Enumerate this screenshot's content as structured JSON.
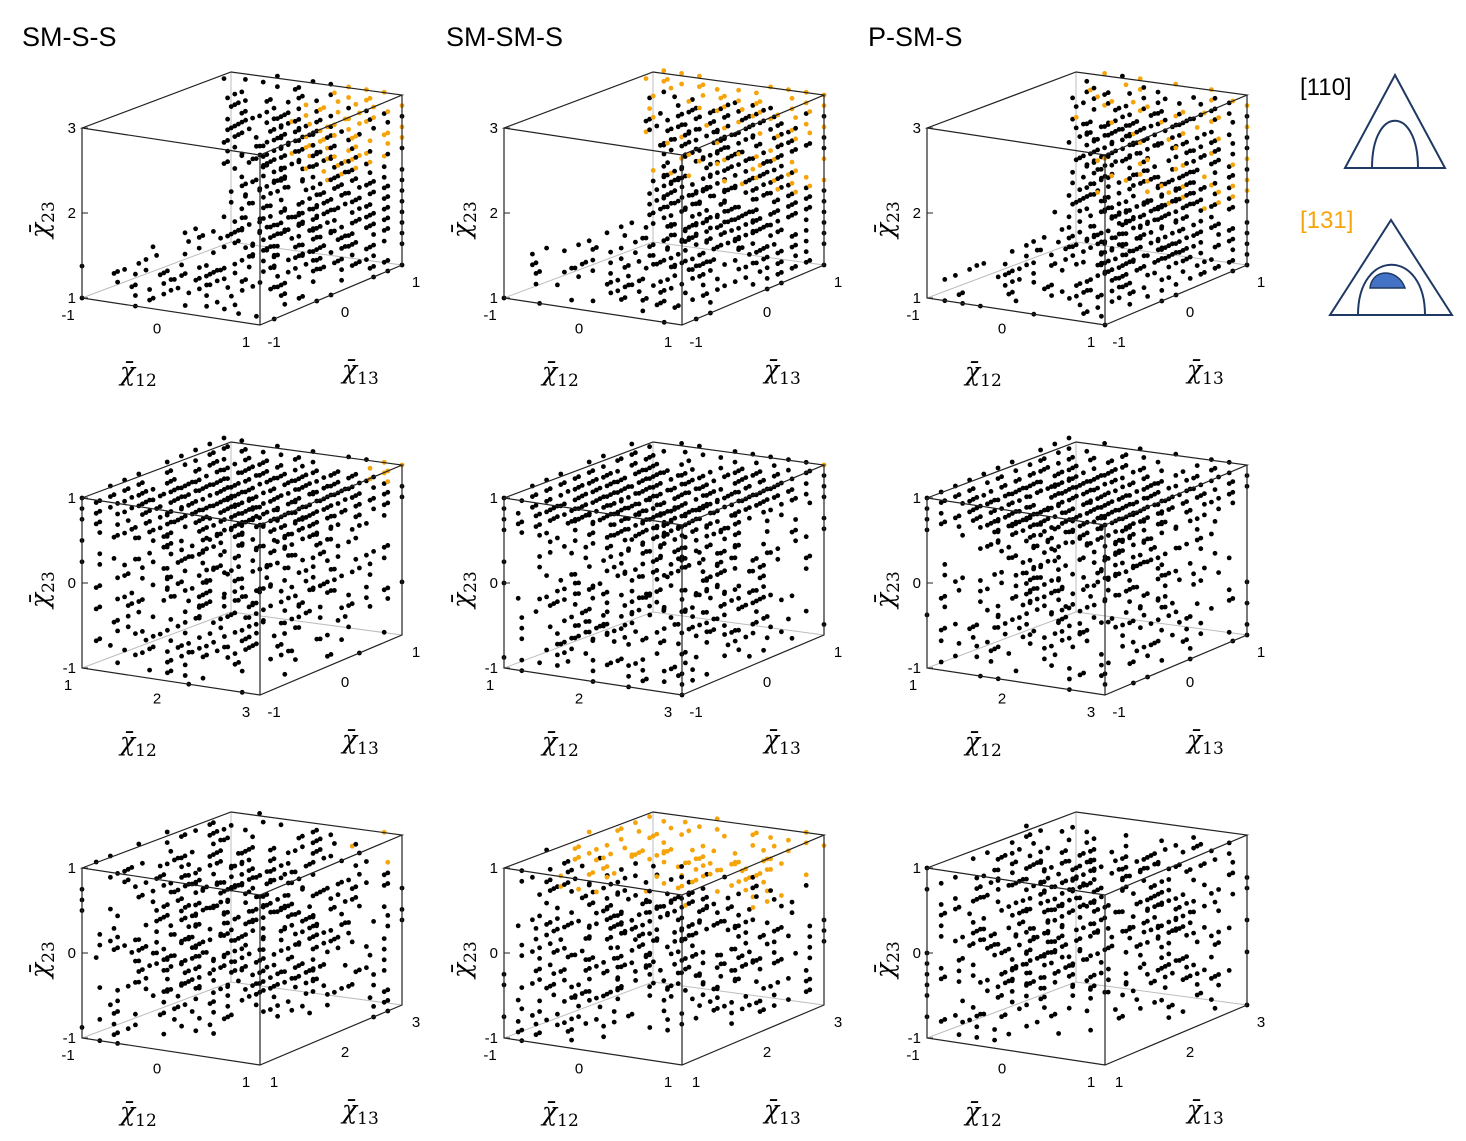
{
  "figure": {
    "column_titles": [
      "SM-S-S",
      "SM-SM-S",
      "P-SM-S"
    ],
    "colors": {
      "base": "#000000",
      "highlight": "#F5A40A",
      "tri_stroke": "#1F3864",
      "tri_fill": "#4472C4"
    },
    "legend": [
      {
        "label": "[110]",
        "color": "#000000",
        "icon": "triangle-with-dome-icon"
      },
      {
        "label": "[131]",
        "color": "#F5A40A",
        "icon": "triangle-with-filled-dome-icon"
      }
    ]
  },
  "chart_data": [
    {
      "type": "scatter",
      "panel": "row1-col1",
      "title": "SM-S-S",
      "xlabel": "χ̄12",
      "ylabel": "χ̄13",
      "zlabel": "χ̄23",
      "xlim": [
        -1,
        1
      ],
      "ylim": [
        -1,
        1
      ],
      "zlim": [
        1,
        3
      ],
      "x_ticks": [
        "-1",
        "0",
        "1"
      ],
      "y_ticks": [
        "-1",
        "0",
        "1"
      ],
      "z_ticks": [
        "1",
        "2",
        "3"
      ],
      "series": [
        {
          "name": "[110]",
          "color": "#000000"
        },
        {
          "name": "[131]",
          "color": "#F5A40A",
          "region": "x≥0.3, y≥0.3"
        }
      ]
    },
    {
      "type": "scatter",
      "panel": "row1-col2",
      "title": "SM-SM-S",
      "xlabel": "χ̄12",
      "ylabel": "χ̄13",
      "zlabel": "χ̄23",
      "xlim": [
        -1,
        1
      ],
      "ylim": [
        -1,
        1
      ],
      "zlim": [
        1,
        3
      ],
      "x_ticks": [
        "-1",
        "0",
        "1"
      ],
      "y_ticks": [
        "-1",
        "0",
        "1"
      ],
      "z_ticks": [
        "1",
        "2",
        "3"
      ],
      "series": [
        {
          "name": "[110]",
          "color": "#000000"
        },
        {
          "name": "[131]",
          "color": "#F5A40A",
          "region": "y≥0.3, χ̄23≥2"
        }
      ]
    },
    {
      "type": "scatter",
      "panel": "row1-col3",
      "title": "P-SM-S",
      "xlabel": "χ̄12",
      "ylabel": "χ̄13",
      "zlabel": "χ̄23",
      "xlim": [
        -1,
        1
      ],
      "ylim": [
        -1,
        1
      ],
      "zlim": [
        1,
        3
      ],
      "x_ticks": [
        "-1",
        "0",
        "1"
      ],
      "y_ticks": [
        "-1",
        "0",
        "1"
      ],
      "z_ticks": [
        "1",
        "2",
        "3"
      ],
      "series": [
        {
          "name": "[110]",
          "color": "#000000"
        },
        {
          "name": "[131]",
          "color": "#F5A40A",
          "region": "y≥0.2, χ̄23≥1.6"
        }
      ]
    },
    {
      "type": "scatter",
      "panel": "row2-col1",
      "xlabel": "χ̄12",
      "ylabel": "χ̄13",
      "zlabel": "χ̄23",
      "xlim": [
        1,
        3
      ],
      "ylim": [
        -1,
        1
      ],
      "zlim": [
        -1,
        1
      ],
      "x_ticks": [
        "1",
        "2",
        "3"
      ],
      "y_ticks": [
        "-1",
        "0",
        "1"
      ],
      "z_ticks": [
        "-1",
        "0",
        "1"
      ],
      "series": [
        {
          "name": "[110]",
          "color": "#000000"
        },
        {
          "name": "[131]",
          "color": "#F5A40A",
          "region": "top corner, y≈1"
        }
      ]
    },
    {
      "type": "scatter",
      "panel": "row2-col2",
      "xlabel": "χ̄12",
      "ylabel": "χ̄13",
      "zlabel": "χ̄23",
      "xlim": [
        1,
        3
      ],
      "ylim": [
        -1,
        1
      ],
      "zlim": [
        -1,
        1
      ],
      "x_ticks": [
        "1",
        "2",
        "3"
      ],
      "y_ticks": [
        "-1",
        "0",
        "1"
      ],
      "z_ticks": [
        "-1",
        "0",
        "1"
      ],
      "series": [
        {
          "name": "[110]",
          "color": "#000000"
        },
        {
          "name": "[131]",
          "color": "#F5A40A",
          "region": "single corner point"
        }
      ]
    },
    {
      "type": "scatter",
      "panel": "row2-col3",
      "xlabel": "χ̄12",
      "ylabel": "χ̄13",
      "zlabel": "χ̄23",
      "xlim": [
        1,
        3
      ],
      "ylim": [
        -1,
        1
      ],
      "zlim": [
        -1,
        1
      ],
      "x_ticks": [
        "1",
        "2",
        "3"
      ],
      "y_ticks": [
        "-1",
        "0",
        "1"
      ],
      "z_ticks": [
        "-1",
        "0",
        "1"
      ],
      "series": [
        {
          "name": "[110]",
          "color": "#000000"
        }
      ]
    },
    {
      "type": "scatter",
      "panel": "row3-col1",
      "xlabel": "χ̄12",
      "ylabel": "χ̄13",
      "zlabel": "χ̄23",
      "xlim": [
        -1,
        1
      ],
      "ylim": [
        1,
        3
      ],
      "zlim": [
        -1,
        1
      ],
      "x_ticks": [
        "-1",
        "0",
        "1"
      ],
      "y_ticks": [
        "1",
        "2",
        "3"
      ],
      "z_ticks": [
        "-1",
        "0",
        "1"
      ],
      "series": [
        {
          "name": "[110]",
          "color": "#000000"
        },
        {
          "name": "[131]",
          "color": "#F5A40A",
          "region": "y≥2.6, χ̄23≈1"
        }
      ]
    },
    {
      "type": "scatter",
      "panel": "row3-col2",
      "xlabel": "χ̄12",
      "ylabel": "χ̄13",
      "zlabel": "χ̄23",
      "xlim": [
        -1,
        1
      ],
      "ylim": [
        1,
        3
      ],
      "zlim": [
        -1,
        1
      ],
      "x_ticks": [
        "-1",
        "0",
        "1"
      ],
      "y_ticks": [
        "1",
        "2",
        "3"
      ],
      "z_ticks": [
        "-1",
        "0",
        "1"
      ],
      "series": [
        {
          "name": "[110]",
          "color": "#000000"
        },
        {
          "name": "[131]",
          "color": "#F5A40A",
          "region": "χ̄23≥0.6, y≥1.8"
        }
      ]
    },
    {
      "type": "scatter",
      "panel": "row3-col3",
      "xlabel": "χ̄12",
      "ylabel": "χ̄13",
      "zlabel": "χ̄23",
      "xlim": [
        -1,
        1
      ],
      "ylim": [
        1,
        3
      ],
      "zlim": [
        -1,
        1
      ],
      "x_ticks": [
        "-1",
        "0",
        "1"
      ],
      "y_ticks": [
        "1",
        "2",
        "3"
      ],
      "z_ticks": [
        "-1",
        "0",
        "1"
      ],
      "series": [
        {
          "name": "[110]",
          "color": "#000000"
        }
      ]
    }
  ]
}
